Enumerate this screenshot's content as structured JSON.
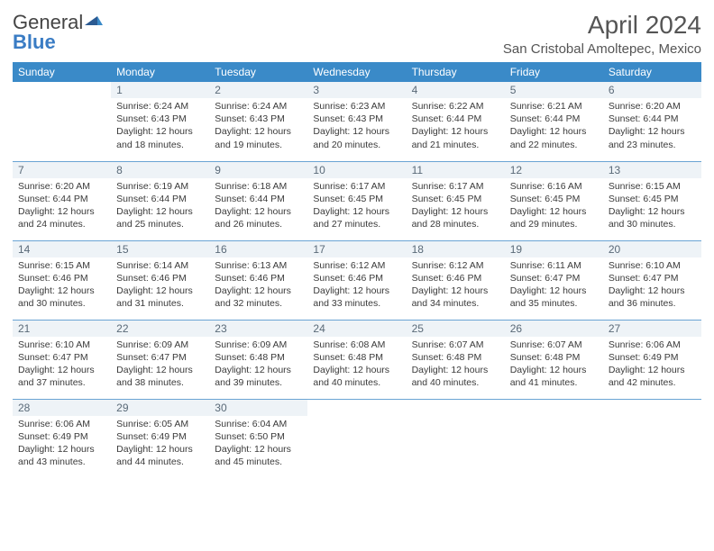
{
  "logo": {
    "word1": "General",
    "word2": "Blue"
  },
  "title": "April 2024",
  "location": "San Cristobal Amoltepec, Mexico",
  "colors": {
    "header_bg": "#3a8ac8",
    "header_text": "#ffffff",
    "daynum_bg": "#eef3f7",
    "daynum_text": "#5a6a78",
    "border": "#6aa4d4",
    "body_text": "#3a3a3a",
    "logo_gray": "#444444",
    "logo_blue": "#3a7cc4"
  },
  "weekdays": [
    "Sunday",
    "Monday",
    "Tuesday",
    "Wednesday",
    "Thursday",
    "Friday",
    "Saturday"
  ],
  "weeks": [
    [
      null,
      {
        "n": "1",
        "sr": "Sunrise: 6:24 AM",
        "ss": "Sunset: 6:43 PM",
        "d1": "Daylight: 12 hours",
        "d2": "and 18 minutes."
      },
      {
        "n": "2",
        "sr": "Sunrise: 6:24 AM",
        "ss": "Sunset: 6:43 PM",
        "d1": "Daylight: 12 hours",
        "d2": "and 19 minutes."
      },
      {
        "n": "3",
        "sr": "Sunrise: 6:23 AM",
        "ss": "Sunset: 6:43 PM",
        "d1": "Daylight: 12 hours",
        "d2": "and 20 minutes."
      },
      {
        "n": "4",
        "sr": "Sunrise: 6:22 AM",
        "ss": "Sunset: 6:44 PM",
        "d1": "Daylight: 12 hours",
        "d2": "and 21 minutes."
      },
      {
        "n": "5",
        "sr": "Sunrise: 6:21 AM",
        "ss": "Sunset: 6:44 PM",
        "d1": "Daylight: 12 hours",
        "d2": "and 22 minutes."
      },
      {
        "n": "6",
        "sr": "Sunrise: 6:20 AM",
        "ss": "Sunset: 6:44 PM",
        "d1": "Daylight: 12 hours",
        "d2": "and 23 minutes."
      }
    ],
    [
      {
        "n": "7",
        "sr": "Sunrise: 6:20 AM",
        "ss": "Sunset: 6:44 PM",
        "d1": "Daylight: 12 hours",
        "d2": "and 24 minutes."
      },
      {
        "n": "8",
        "sr": "Sunrise: 6:19 AM",
        "ss": "Sunset: 6:44 PM",
        "d1": "Daylight: 12 hours",
        "d2": "and 25 minutes."
      },
      {
        "n": "9",
        "sr": "Sunrise: 6:18 AM",
        "ss": "Sunset: 6:44 PM",
        "d1": "Daylight: 12 hours",
        "d2": "and 26 minutes."
      },
      {
        "n": "10",
        "sr": "Sunrise: 6:17 AM",
        "ss": "Sunset: 6:45 PM",
        "d1": "Daylight: 12 hours",
        "d2": "and 27 minutes."
      },
      {
        "n": "11",
        "sr": "Sunrise: 6:17 AM",
        "ss": "Sunset: 6:45 PM",
        "d1": "Daylight: 12 hours",
        "d2": "and 28 minutes."
      },
      {
        "n": "12",
        "sr": "Sunrise: 6:16 AM",
        "ss": "Sunset: 6:45 PM",
        "d1": "Daylight: 12 hours",
        "d2": "and 29 minutes."
      },
      {
        "n": "13",
        "sr": "Sunrise: 6:15 AM",
        "ss": "Sunset: 6:45 PM",
        "d1": "Daylight: 12 hours",
        "d2": "and 30 minutes."
      }
    ],
    [
      {
        "n": "14",
        "sr": "Sunrise: 6:15 AM",
        "ss": "Sunset: 6:46 PM",
        "d1": "Daylight: 12 hours",
        "d2": "and 30 minutes."
      },
      {
        "n": "15",
        "sr": "Sunrise: 6:14 AM",
        "ss": "Sunset: 6:46 PM",
        "d1": "Daylight: 12 hours",
        "d2": "and 31 minutes."
      },
      {
        "n": "16",
        "sr": "Sunrise: 6:13 AM",
        "ss": "Sunset: 6:46 PM",
        "d1": "Daylight: 12 hours",
        "d2": "and 32 minutes."
      },
      {
        "n": "17",
        "sr": "Sunrise: 6:12 AM",
        "ss": "Sunset: 6:46 PM",
        "d1": "Daylight: 12 hours",
        "d2": "and 33 minutes."
      },
      {
        "n": "18",
        "sr": "Sunrise: 6:12 AM",
        "ss": "Sunset: 6:46 PM",
        "d1": "Daylight: 12 hours",
        "d2": "and 34 minutes."
      },
      {
        "n": "19",
        "sr": "Sunrise: 6:11 AM",
        "ss": "Sunset: 6:47 PM",
        "d1": "Daylight: 12 hours",
        "d2": "and 35 minutes."
      },
      {
        "n": "20",
        "sr": "Sunrise: 6:10 AM",
        "ss": "Sunset: 6:47 PM",
        "d1": "Daylight: 12 hours",
        "d2": "and 36 minutes."
      }
    ],
    [
      {
        "n": "21",
        "sr": "Sunrise: 6:10 AM",
        "ss": "Sunset: 6:47 PM",
        "d1": "Daylight: 12 hours",
        "d2": "and 37 minutes."
      },
      {
        "n": "22",
        "sr": "Sunrise: 6:09 AM",
        "ss": "Sunset: 6:47 PM",
        "d1": "Daylight: 12 hours",
        "d2": "and 38 minutes."
      },
      {
        "n": "23",
        "sr": "Sunrise: 6:09 AM",
        "ss": "Sunset: 6:48 PM",
        "d1": "Daylight: 12 hours",
        "d2": "and 39 minutes."
      },
      {
        "n": "24",
        "sr": "Sunrise: 6:08 AM",
        "ss": "Sunset: 6:48 PM",
        "d1": "Daylight: 12 hours",
        "d2": "and 40 minutes."
      },
      {
        "n": "25",
        "sr": "Sunrise: 6:07 AM",
        "ss": "Sunset: 6:48 PM",
        "d1": "Daylight: 12 hours",
        "d2": "and 40 minutes."
      },
      {
        "n": "26",
        "sr": "Sunrise: 6:07 AM",
        "ss": "Sunset: 6:48 PM",
        "d1": "Daylight: 12 hours",
        "d2": "and 41 minutes."
      },
      {
        "n": "27",
        "sr": "Sunrise: 6:06 AM",
        "ss": "Sunset: 6:49 PM",
        "d1": "Daylight: 12 hours",
        "d2": "and 42 minutes."
      }
    ],
    [
      {
        "n": "28",
        "sr": "Sunrise: 6:06 AM",
        "ss": "Sunset: 6:49 PM",
        "d1": "Daylight: 12 hours",
        "d2": "and 43 minutes."
      },
      {
        "n": "29",
        "sr": "Sunrise: 6:05 AM",
        "ss": "Sunset: 6:49 PM",
        "d1": "Daylight: 12 hours",
        "d2": "and 44 minutes."
      },
      {
        "n": "30",
        "sr": "Sunrise: 6:04 AM",
        "ss": "Sunset: 6:50 PM",
        "d1": "Daylight: 12 hours",
        "d2": "and 45 minutes."
      },
      null,
      null,
      null,
      null
    ]
  ]
}
